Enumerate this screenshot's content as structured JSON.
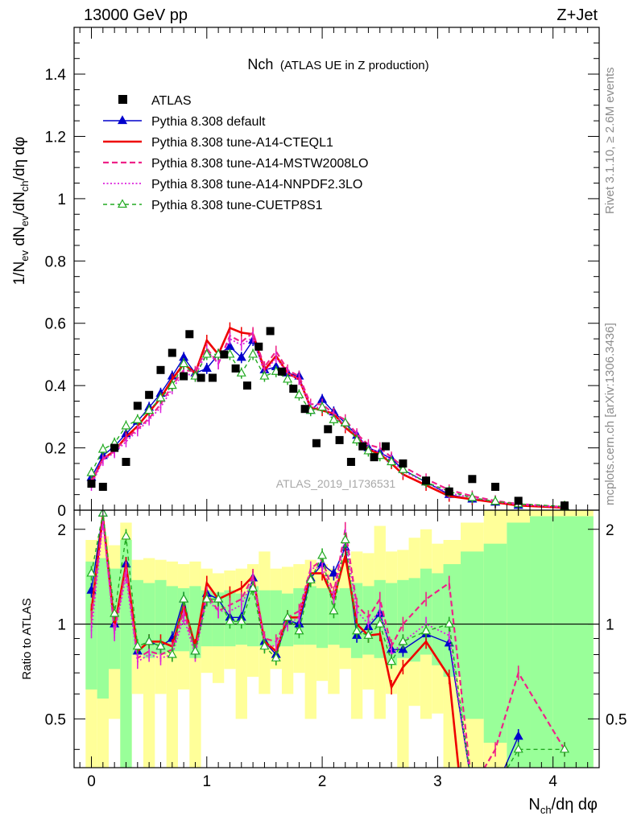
{
  "header": {
    "left": "13000 GeV pp",
    "right": "Z+Jet"
  },
  "side_labels": {
    "rivet": "Rivet 3.1.10, ≥ 2.6M events",
    "mcplots": "mcplots.cern.ch [arXiv:1306.3436]"
  },
  "chart_data": [
    {
      "type": "line",
      "panel": "main",
      "title": "Nch",
      "title_suffix": "(ATLAS UE in Z production)",
      "watermark": "ATLAS_2019_I1736531",
      "ylabel": "1/N_ev dN_ev/dN_ch/dη dφ",
      "xlim": [
        -0.15,
        4.4
      ],
      "ylim": [
        0,
        1.55
      ],
      "yticks": [
        0,
        0.2,
        0.4,
        0.6,
        0.8,
        1,
        1.2,
        1.4
      ],
      "ytick_labels": [
        "0",
        "0.2",
        "0.4",
        "0.6",
        "0.8",
        "1",
        "1.2",
        "1.4"
      ],
      "grid": false,
      "legend_position": "top-left",
      "legend": [
        "ATLAS",
        "Pythia 8.308 default",
        "Pythia 8.308 tune-A14-CTEQL1",
        "Pythia 8.308 tune-A14-MSTW2008LO",
        "Pythia 8.308 tune-A14-NNPDF2.3LO",
        "Pythia 8.308 tune-CUETP8S1"
      ],
      "data": {
        "name": "ATLAS",
        "x": [
          0.0,
          0.1,
          0.2,
          0.3,
          0.4,
          0.5,
          0.6,
          0.7,
          0.8,
          0.85,
          0.95,
          1.05,
          1.15,
          1.25,
          1.35,
          1.45,
          1.55,
          1.65,
          1.75,
          1.85,
          1.95,
          2.05,
          2.15,
          2.25,
          2.35,
          2.45,
          2.55,
          2.7,
          2.9,
          3.1,
          3.3,
          3.5,
          3.7,
          4.1
        ],
        "y": [
          0.085,
          0.075,
          0.2,
          0.155,
          0.335,
          0.37,
          0.45,
          0.505,
          0.43,
          0.565,
          0.425,
          0.425,
          0.5,
          0.455,
          0.4,
          0.525,
          0.575,
          0.445,
          0.39,
          0.325,
          0.215,
          0.26,
          0.225,
          0.155,
          0.205,
          0.17,
          0.205,
          0.15,
          0.095,
          0.06,
          0.1,
          0.075,
          0.03,
          0.015
        ]
      },
      "series": [
        {
          "name": "Pythia 8.308 default",
          "color": "#0000cc",
          "x": [
            0.0,
            0.1,
            0.2,
            0.3,
            0.4,
            0.5,
            0.6,
            0.7,
            0.8,
            0.9,
            1.0,
            1.1,
            1.2,
            1.3,
            1.4,
            1.5,
            1.6,
            1.7,
            1.8,
            1.9,
            2.0,
            2.1,
            2.2,
            2.3,
            2.4,
            2.5,
            2.6,
            2.7,
            2.9,
            3.1,
            3.3,
            3.5,
            3.7,
            4.1
          ],
          "y": [
            0.105,
            0.175,
            0.205,
            0.245,
            0.285,
            0.33,
            0.375,
            0.43,
            0.49,
            0.44,
            0.455,
            0.5,
            0.525,
            0.49,
            0.545,
            0.45,
            0.46,
            0.44,
            0.43,
            0.32,
            0.355,
            0.315,
            0.28,
            0.24,
            0.2,
            0.185,
            0.165,
            0.13,
            0.09,
            0.05,
            0.035,
            0.025,
            0.015,
            0.008
          ]
        },
        {
          "name": "Pythia 8.308 tune-A14-CTEQL1",
          "color": "#ee0000",
          "x": [
            0.0,
            0.1,
            0.2,
            0.3,
            0.4,
            0.5,
            0.6,
            0.7,
            0.8,
            0.9,
            1.0,
            1.1,
            1.2,
            1.3,
            1.4,
            1.5,
            1.6,
            1.7,
            1.8,
            1.9,
            2.0,
            2.1,
            2.2,
            2.3,
            2.4,
            2.5,
            2.6,
            2.7,
            2.9,
            3.1,
            3.3,
            3.5,
            3.7,
            4.1
          ],
          "y": [
            0.09,
            0.165,
            0.19,
            0.235,
            0.27,
            0.315,
            0.36,
            0.42,
            0.47,
            0.44,
            0.545,
            0.5,
            0.585,
            0.57,
            0.565,
            0.45,
            0.495,
            0.44,
            0.42,
            0.33,
            0.32,
            0.31,
            0.265,
            0.235,
            0.195,
            0.18,
            0.15,
            0.115,
            0.08,
            0.045,
            0.035,
            0.025,
            0.015,
            0.008
          ]
        },
        {
          "name": "Pythia 8.308 tune-A14-MSTW2008LO",
          "color": "#ee2288",
          "x": [
            0.0,
            0.1,
            0.2,
            0.3,
            0.4,
            0.5,
            0.6,
            0.7,
            0.8,
            0.9,
            1.0,
            1.1,
            1.2,
            1.3,
            1.4,
            1.5,
            1.6,
            1.7,
            1.8,
            1.9,
            2.0,
            2.1,
            2.2,
            2.3,
            2.4,
            2.5,
            2.6,
            2.7,
            2.9,
            3.1,
            3.3,
            3.5,
            3.7,
            4.1
          ],
          "y": [
            0.09,
            0.165,
            0.19,
            0.23,
            0.26,
            0.295,
            0.34,
            0.4,
            0.45,
            0.445,
            0.52,
            0.47,
            0.56,
            0.54,
            0.57,
            0.46,
            0.51,
            0.45,
            0.43,
            0.34,
            0.34,
            0.31,
            0.29,
            0.245,
            0.21,
            0.2,
            0.17,
            0.14,
            0.1,
            0.065,
            0.045,
            0.03,
            0.02,
            0.01
          ]
        },
        {
          "name": "Pythia 8.308 tune-A14-NNPDF2.3LO",
          "color": "#dd22dd",
          "x": [
            0.0,
            0.1,
            0.2,
            0.3,
            0.4,
            0.5,
            0.6,
            0.7,
            0.8,
            0.9,
            1.0,
            1.1,
            1.2,
            1.3,
            1.4,
            1.5,
            1.6,
            1.7,
            1.8,
            1.9,
            2.0,
            2.1,
            2.2,
            2.3,
            2.4,
            2.5,
            2.6,
            2.7,
            2.9,
            3.1,
            3.3,
            3.5,
            3.7,
            4.1
          ],
          "y": [
            0.08,
            0.16,
            0.185,
            0.22,
            0.255,
            0.29,
            0.33,
            0.39,
            0.44,
            0.43,
            0.51,
            0.47,
            0.55,
            0.53,
            0.555,
            0.44,
            0.49,
            0.44,
            0.42,
            0.33,
            0.33,
            0.3,
            0.275,
            0.24,
            0.2,
            0.185,
            0.16,
            0.125,
            0.09,
            0.055,
            0.04,
            0.027,
            0.018,
            0.009
          ]
        },
        {
          "name": "Pythia 8.308 tune-CUETP8S1",
          "color": "#22aa22",
          "x": [
            0.0,
            0.1,
            0.2,
            0.3,
            0.4,
            0.5,
            0.6,
            0.7,
            0.8,
            0.9,
            1.0,
            1.1,
            1.2,
            1.3,
            1.4,
            1.5,
            1.6,
            1.7,
            1.8,
            1.9,
            2.0,
            2.1,
            2.2,
            2.3,
            2.4,
            2.5,
            2.6,
            2.7,
            2.9,
            3.1,
            3.3,
            3.5,
            3.7,
            4.1
          ],
          "y": [
            0.12,
            0.195,
            0.215,
            0.27,
            0.29,
            0.32,
            0.36,
            0.4,
            0.47,
            0.43,
            0.5,
            0.5,
            0.5,
            0.44,
            0.5,
            0.43,
            0.445,
            0.42,
            0.37,
            0.32,
            0.33,
            0.29,
            0.28,
            0.225,
            0.19,
            0.175,
            0.155,
            0.13,
            0.09,
            0.06,
            0.04,
            0.028,
            0.02,
            0.012
          ]
        }
      ]
    },
    {
      "type": "line",
      "panel": "ratio",
      "ylabel": "Ratio to ATLAS",
      "xlabel": "N_ch/dη dφ",
      "xlim": [
        -0.15,
        4.4
      ],
      "ylim": [
        0.35,
        2.3
      ],
      "yticks": [
        0.5,
        1,
        2
      ],
      "ytick_labels": [
        "0.5",
        "1",
        "2"
      ],
      "xticks": [
        0,
        1,
        2,
        3,
        4
      ],
      "xtick_labels": [
        "0",
        "1",
        "2",
        "3",
        "4"
      ],
      "reference_line": 1,
      "bands": {
        "x_edges": [
          -0.05,
          0.05,
          0.15,
          0.25,
          0.35,
          0.45,
          0.55,
          0.65,
          0.75,
          0.85,
          0.95,
          1.05,
          1.15,
          1.25,
          1.35,
          1.45,
          1.55,
          1.65,
          1.75,
          1.85,
          1.95,
          2.05,
          2.15,
          2.25,
          2.35,
          2.45,
          2.55,
          2.65,
          2.75,
          2.85,
          2.95,
          3.05,
          3.2,
          3.4,
          3.6,
          3.8,
          4.0,
          4.35
        ],
        "green_low": [
          0.62,
          0.58,
          0.72,
          0.35,
          0.8,
          0.78,
          0.8,
          0.82,
          0.82,
          0.78,
          0.85,
          0.85,
          0.85,
          0.86,
          0.85,
          0.85,
          0.85,
          0.85,
          0.86,
          0.86,
          0.84,
          0.86,
          0.84,
          0.78,
          0.8,
          0.78,
          0.74,
          0.78,
          0.76,
          0.8,
          0.74,
          0.68,
          0.5,
          0.42,
          0.35,
          0.35,
          0.35
        ],
        "green_high": [
          1.58,
          1.62,
          1.5,
          1.85,
          1.38,
          1.35,
          1.38,
          1.32,
          1.3,
          1.32,
          1.28,
          1.26,
          1.28,
          1.25,
          1.32,
          1.28,
          1.28,
          1.25,
          1.3,
          1.32,
          1.3,
          1.28,
          1.3,
          1.35,
          1.32,
          1.38,
          1.35,
          1.38,
          1.4,
          1.5,
          1.45,
          1.55,
          1.7,
          1.8,
          2.1,
          2.2,
          2.2
        ],
        "yellow_low": [
          0.35,
          0.35,
          0.5,
          0.35,
          0.6,
          0.35,
          0.6,
          0.35,
          0.62,
          0.35,
          0.7,
          0.65,
          0.72,
          0.5,
          0.68,
          0.6,
          0.72,
          0.6,
          0.7,
          0.5,
          0.66,
          0.6,
          0.72,
          0.5,
          0.62,
          0.5,
          0.6,
          0.35,
          0.55,
          0.5,
          0.52,
          0.35,
          0.35,
          0.35,
          0.35,
          0.35,
          0.35
        ],
        "yellow_high": [
          1.85,
          1.9,
          1.78,
          2.1,
          1.6,
          1.62,
          1.6,
          1.58,
          1.55,
          1.58,
          1.5,
          1.45,
          1.48,
          1.5,
          1.55,
          1.7,
          1.5,
          1.52,
          1.55,
          1.6,
          1.55,
          1.5,
          1.62,
          1.7,
          1.68,
          2.05,
          1.7,
          1.72,
          1.88,
          2.0,
          1.8,
          1.85,
          2.1,
          2.3,
          2.3,
          2.3,
          2.3
        ]
      },
      "series": [
        {
          "name": "Pythia 8.308 default",
          "x": [
            0.0,
            0.1,
            0.2,
            0.3,
            0.4,
            0.5,
            0.6,
            0.7,
            0.8,
            0.9,
            1.0,
            1.1,
            1.2,
            1.3,
            1.4,
            1.5,
            1.6,
            1.7,
            1.8,
            1.9,
            2.0,
            2.1,
            2.2,
            2.3,
            2.4,
            2.5,
            2.6,
            2.7,
            2.9,
            3.1,
            3.3,
            3.5,
            3.7
          ],
          "y": [
            1.28,
            2.25,
            1.0,
            1.55,
            0.82,
            0.88,
            0.85,
            0.9,
            1.2,
            0.82,
            1.25,
            1.2,
            1.05,
            1.05,
            1.4,
            0.88,
            0.8,
            1.03,
            1.0,
            1.4,
            1.55,
            1.45,
            1.75,
            0.92,
            0.98,
            1.08,
            0.83,
            0.83,
            0.93,
            0.87,
            0.3,
            0.3,
            0.44
          ]
        },
        {
          "name": "Pythia 8.308 tune-A14-CTEQL1",
          "x": [
            0.0,
            0.1,
            0.2,
            0.3,
            0.4,
            0.5,
            0.6,
            0.7,
            0.8,
            0.9,
            1.0,
            1.1,
            1.2,
            1.3,
            1.4,
            1.5,
            1.6,
            1.7,
            1.8,
            1.9,
            2.0,
            2.1,
            2.2,
            2.3,
            2.4,
            2.5,
            2.6,
            2.7,
            2.9,
            3.1,
            3.2
          ],
          "y": [
            1.1,
            2.2,
            0.98,
            1.55,
            0.82,
            0.88,
            0.88,
            0.85,
            1.15,
            0.85,
            1.35,
            1.2,
            1.25,
            1.3,
            1.42,
            0.88,
            0.82,
            1.05,
            1.05,
            1.45,
            1.45,
            1.2,
            1.65,
            1.0,
            0.92,
            0.93,
            0.63,
            0.73,
            0.88,
            0.68,
            0.3
          ]
        },
        {
          "name": "Pythia 8.308 tune-A14-MSTW2008LO",
          "x": [
            0.0,
            0.1,
            0.2,
            0.3,
            0.4,
            0.5,
            0.6,
            0.7,
            0.8,
            0.9,
            1.0,
            1.1,
            1.2,
            1.3,
            1.4,
            1.5,
            1.6,
            1.7,
            1.8,
            1.9,
            2.0,
            2.1,
            2.2,
            2.3,
            2.4,
            2.5,
            2.6,
            2.7,
            2.9,
            3.1,
            3.3,
            3.5,
            3.7,
            4.1
          ],
          "y": [
            1.05,
            2.15,
            0.95,
            1.5,
            0.78,
            0.82,
            0.8,
            0.83,
            1.1,
            0.82,
            1.25,
            1.1,
            1.15,
            1.2,
            1.42,
            0.9,
            0.88,
            1.05,
            1.1,
            1.5,
            1.6,
            1.25,
            2.0,
            1.15,
            1.05,
            1.2,
            0.85,
            1.0,
            1.2,
            1.35,
            0.3,
            0.4,
            0.7,
            0.4
          ]
        },
        {
          "name": "Pythia 8.308 tune-A14-NNPDF2.3LO",
          "x": [
            0.0,
            0.1,
            0.2,
            0.3,
            0.4,
            0.5,
            0.6,
            0.7,
            0.8,
            0.9,
            1.0,
            1.1,
            1.2,
            1.3,
            1.4,
            1.5,
            1.6,
            1.7,
            1.8,
            1.9,
            2.0,
            2.1,
            2.2,
            2.3,
            2.4,
            2.5,
            2.6,
            2.7,
            2.9,
            3.1,
            3.3,
            3.5
          ],
          "y": [
            0.95,
            2.1,
            0.93,
            1.42,
            0.76,
            0.8,
            0.78,
            0.8,
            1.05,
            0.8,
            1.2,
            1.1,
            1.1,
            1.15,
            1.38,
            0.86,
            0.85,
            1.0,
            1.05,
            1.5,
            1.52,
            1.2,
            1.9,
            1.1,
            1.0,
            1.1,
            0.8,
            0.88,
            1.0,
            0.92,
            0.3,
            0.3
          ]
        },
        {
          "name": "Pythia 8.308 tune-CUETP8S1",
          "x": [
            0.0,
            0.1,
            0.2,
            0.3,
            0.4,
            0.5,
            0.6,
            0.7,
            0.8,
            0.9,
            1.0,
            1.1,
            1.2,
            1.3,
            1.4,
            1.5,
            1.6,
            1.7,
            1.8,
            1.9,
            2.0,
            2.1,
            2.2,
            2.3,
            2.4,
            2.5,
            2.6,
            2.7,
            2.9,
            3.1,
            3.3,
            3.5,
            3.7,
            4.1
          ],
          "y": [
            1.45,
            2.25,
            1.08,
            1.9,
            0.85,
            0.88,
            0.85,
            0.8,
            1.2,
            0.82,
            1.2,
            1.2,
            1.02,
            1.02,
            1.3,
            0.85,
            0.78,
            1.05,
            0.95,
            1.38,
            1.65,
            1.1,
            1.85,
            0.95,
            0.92,
            1.0,
            0.76,
            0.88,
            0.95,
            1.0,
            0.3,
            0.3,
            0.4,
            0.4
          ]
        }
      ]
    }
  ]
}
